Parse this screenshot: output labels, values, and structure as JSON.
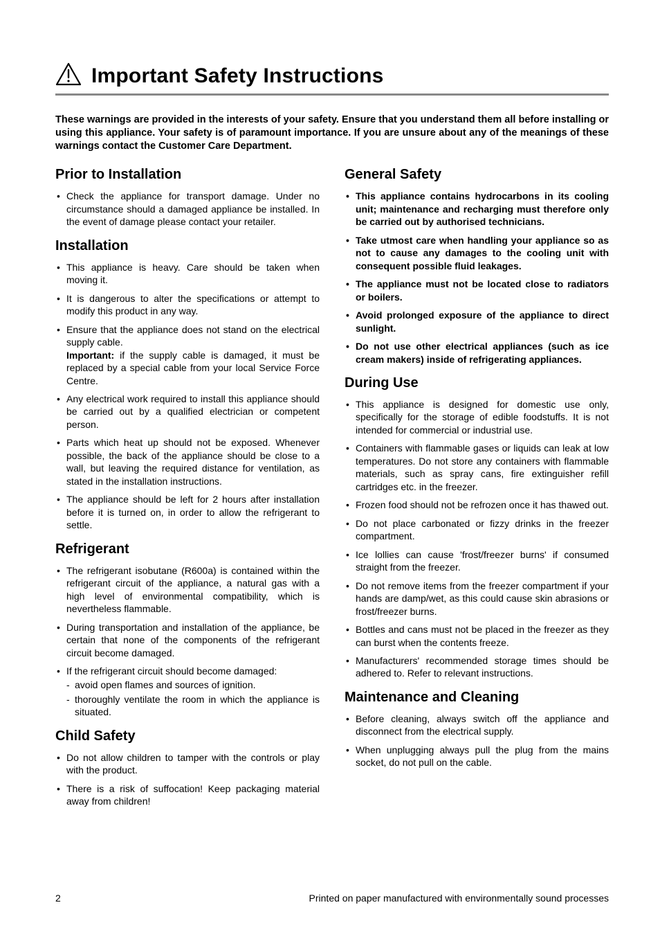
{
  "page": {
    "title": "Important Safety Instructions",
    "intro": "These warnings are provided in the interests of your safety. Ensure that you understand them all before installing or using this appliance. Your safety is of paramount importance. If you are unsure about any of the meanings of these warnings contact the Customer Care Department.",
    "page_number": "2",
    "footer_text": "Printed on paper manufactured with environmentally sound processes"
  },
  "icon": {
    "stroke": "#000000",
    "stroke_width": 2
  },
  "left_column": {
    "sections": [
      {
        "heading": "Prior to Installation",
        "bold": false,
        "items": [
          "Check the appliance for transport damage. Under no circumstance should a damaged appliance be installed. In the event of damage please contact your retailer."
        ]
      },
      {
        "heading": "Installation",
        "bold": false,
        "items": [
          "This appliance is heavy. Care should be taken when moving it.",
          "It is dangerous to alter the specifications or attempt to modify this product in any way.",
          {
            "text_before": "Ensure that the appliance does not stand on the electrical supply cable.",
            "important_label": "Important:",
            "text_after": " if the supply cable is damaged, it must be replaced by a special cable from your local Service Force Centre."
          },
          "Any electrical work required to install this appliance should be carried out by a qualified electrician or competent person.",
          "Parts which heat up should not be exposed. Whenever possible, the back of the appliance should be close to a wall, but leaving the required distance for ventilation, as stated in the installation instructions.",
          "The appliance should be left for 2 hours after installation before it is turned on, in order to allow the refrigerant to settle."
        ]
      },
      {
        "heading": "Refrigerant",
        "bold": false,
        "items": [
          "The refrigerant isobutane (R600a) is contained within the refrigerant circuit of the appliance, a natural gas with a high level of environmental compatibility, which is nevertheless flammable.",
          "During transportation and installation of the appliance, be certain that none of the components of the refrigerant circuit become damaged.",
          {
            "text": "If the refrigerant circuit should become damaged:",
            "nested": [
              "avoid open flames and sources of ignition.",
              "thoroughly ventilate the room in which the appliance is situated."
            ]
          }
        ]
      },
      {
        "heading": "Child Safety",
        "bold": false,
        "items": [
          "Do not allow children to tamper with the controls or play with the product.",
          "There is a risk of suffocation! Keep packaging material away from children!"
        ]
      }
    ]
  },
  "right_column": {
    "sections": [
      {
        "heading": "General Safety",
        "bold": true,
        "items": [
          "This appliance contains hydrocarbons in its cooling unit; maintenance and recharging must therefore only be carried out by authorised technicians.",
          "Take utmost care when handling your appliance so as not to cause any damages to the cooling unit with consequent possible fluid leakages.",
          "The appliance must not be located close to radiators or boilers.",
          "Avoid prolonged exposure of the appliance to direct sunlight.",
          "Do not use other electrical appliances (such as ice cream makers) inside of refrigerating appliances."
        ]
      },
      {
        "heading": "During Use",
        "bold": false,
        "items": [
          "This appliance is designed for domestic use only, specifically for the storage of edible foodstuffs. It is not intended for commercial or industrial use.",
          "Containers with flammable gases or liquids can leak at low temperatures. Do not store any containers with flammable materials, such as spray cans, fire extinguisher refill cartridges etc. in the freezer.",
          "Frozen food should not be refrozen once it has thawed out.",
          "Do not place carbonated or fizzy drinks in the freezer compartment.",
          "Ice lollies can cause 'frost/freezer burns' if consumed straight from the freezer.",
          "Do not remove items from the freezer compartment if your hands are damp/wet, as this could cause skin abrasions or frost/freezer burns.",
          "Bottles and cans must not be placed in the freezer as they can burst when the contents freeze.",
          "Manufacturers' recommended storage times should be adhered to. Refer to relevant instructions."
        ]
      },
      {
        "heading": "Maintenance and Cleaning",
        "bold": false,
        "items": [
          "Before cleaning, always switch off the appliance and disconnect from the electrical supply.",
          "When unplugging always pull the plug from the mains socket, do not pull on the cable."
        ]
      }
    ]
  }
}
